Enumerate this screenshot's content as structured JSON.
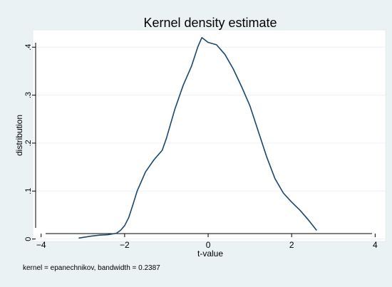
{
  "chart_data": {
    "type": "line",
    "title": "Kernel density estimate",
    "xlabel": "t-value",
    "ylabel": "distribution",
    "note": "kernel = epanechnikov, bandwidth = 0.2387",
    "xlim": [
      -4.2,
      4.25
    ],
    "ylim": [
      -0.005,
      0.436
    ],
    "x_ticks": [
      -4,
      -2,
      0,
      2,
      4
    ],
    "x_tick_labels": [
      "−4",
      "−2",
      "0",
      "2",
      "4"
    ],
    "y_ticks": [
      0,
      0.1,
      0.2,
      0.3,
      0.4
    ],
    "y_tick_labels": [
      "0",
      ".1",
      ".2",
      ".3",
      ".4"
    ],
    "grid": true,
    "legend": "none",
    "series": [
      {
        "color": "#1a476f",
        "x": [
          -3.1,
          -2.8,
          -2.6,
          -2.4,
          -2.2,
          -2.1,
          -2.0,
          -1.9,
          -1.8,
          -1.7,
          -1.5,
          -1.3,
          -1.1,
          -1.0,
          -0.8,
          -0.6,
          -0.4,
          -0.25,
          -0.15,
          0.0,
          0.2,
          0.4,
          0.6,
          0.8,
          1.0,
          1.2,
          1.4,
          1.6,
          1.8,
          2.0,
          2.2,
          2.4,
          2.6
        ],
        "y": [
          0.002,
          0.006,
          0.008,
          0.009,
          0.012,
          0.018,
          0.028,
          0.045,
          0.072,
          0.1,
          0.14,
          0.165,
          0.185,
          0.21,
          0.27,
          0.32,
          0.36,
          0.4,
          0.42,
          0.41,
          0.405,
          0.385,
          0.355,
          0.318,
          0.278,
          0.225,
          0.172,
          0.126,
          0.096,
          0.077,
          0.06,
          0.04,
          0.018
        ]
      }
    ]
  },
  "colors": {
    "outer_background": "#eaf2f3",
    "plot_background": "#ffffff",
    "line": "#1a476f",
    "grid": "#eaf2f3",
    "title": "#1a476f"
  }
}
